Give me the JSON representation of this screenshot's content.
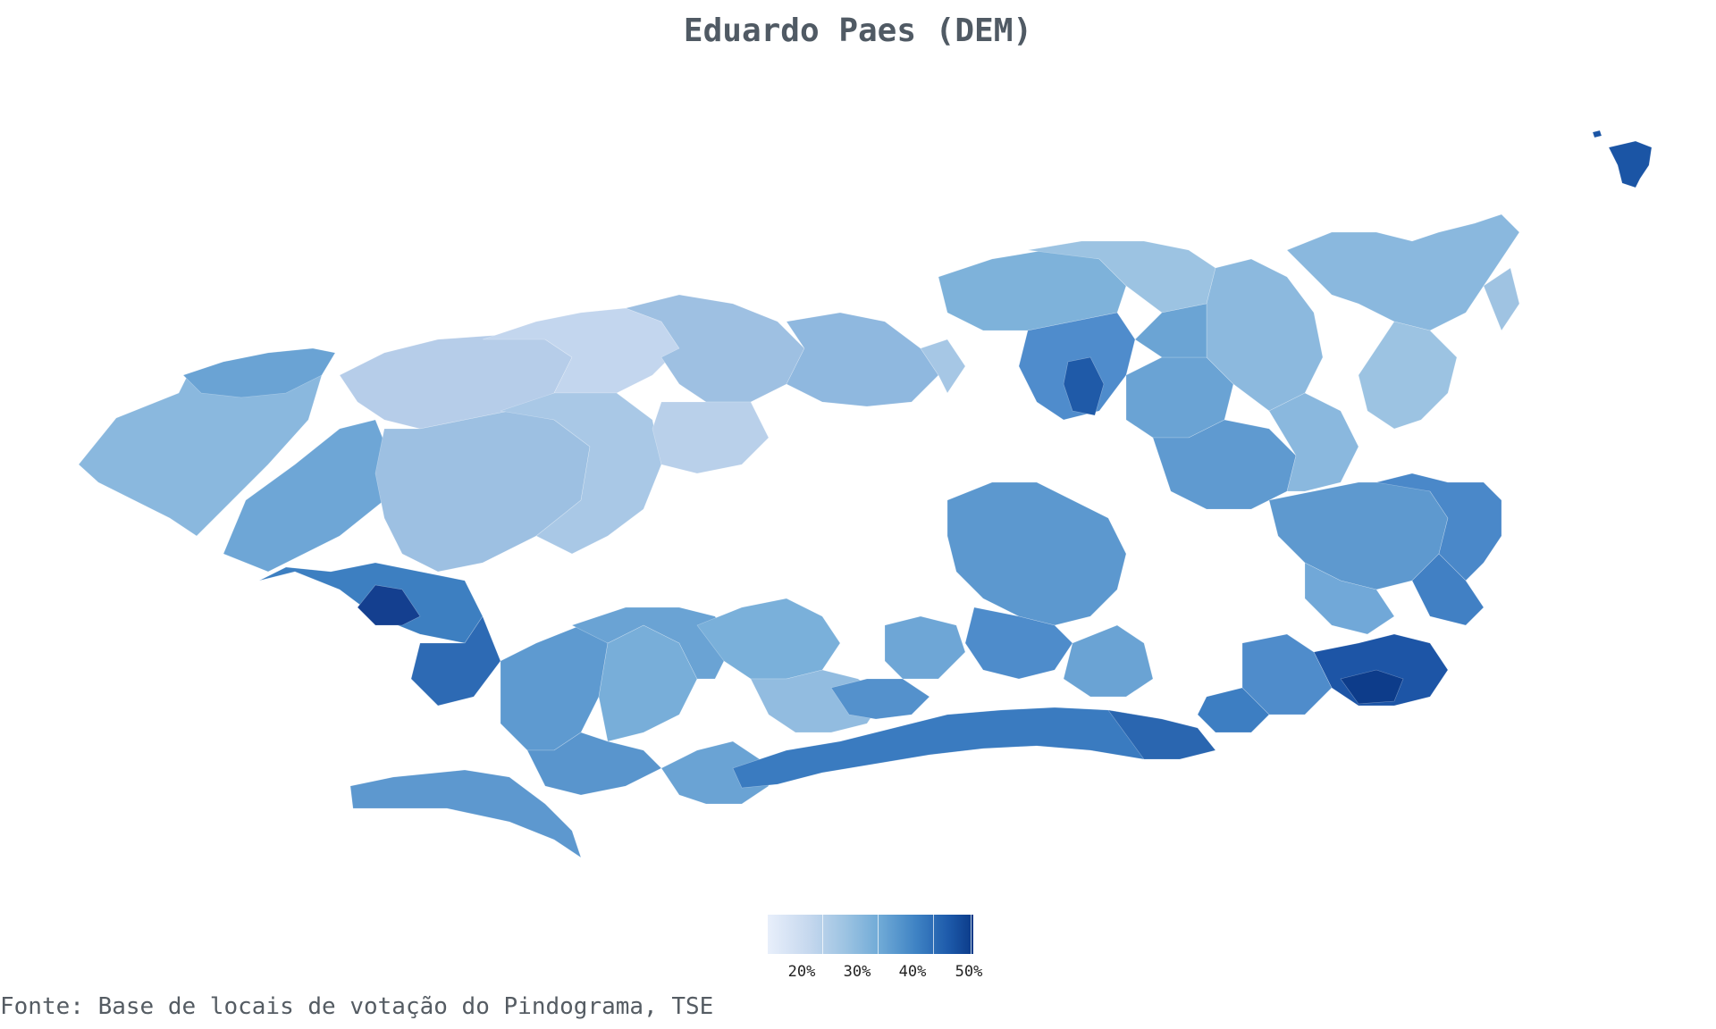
{
  "map": {
    "title": "Eduardo Paes (DEM)",
    "legend": {
      "ticks": [
        "20%",
        "30%",
        "40%",
        "50%"
      ],
      "colors": [
        "#e8effb",
        "#c6d8ee",
        "#9cc3e2",
        "#6ea9d6",
        "#3f83c4",
        "#1d5aaa",
        "#0b3a88"
      ]
    },
    "source": "Fonte: Base de locais de votação do Pindograma, TSE"
  }
}
